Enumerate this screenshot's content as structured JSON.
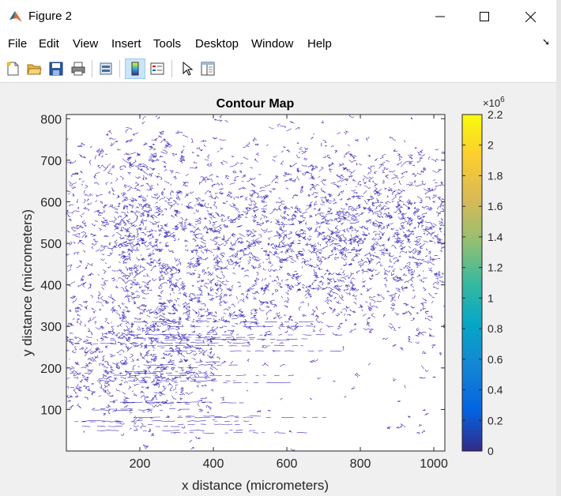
{
  "window": {
    "title": "Figure 2"
  },
  "menu": [
    "File",
    "Edit",
    "View",
    "Insert",
    "Tools",
    "Desktop",
    "Window",
    "Help"
  ],
  "toolbar_icons": [
    "new-figure-icon",
    "open-file-icon",
    "save-icon",
    "print-icon",
    "link-plot-icon",
    "insert-colorbar-icon",
    "insert-legend-icon",
    "edit-plot-pointer-icon",
    "property-inspector-icon"
  ],
  "colors": {
    "contour": "#3d2fb8",
    "parula_low": "#3e26a8",
    "parula_high": "#f9fb15"
  },
  "chart_data": {
    "type": "contour",
    "title": "Contour Map",
    "xlabel": "x distance (micrometers)",
    "ylabel": "y distance (micrometers)",
    "xlim": [
      0,
      1030
    ],
    "ylim": [
      0,
      810
    ],
    "x_ticks": [
      "200",
      "400",
      "600",
      "800",
      "1000"
    ],
    "y_ticks": [
      "100",
      "200",
      "300",
      "400",
      "500",
      "600",
      "700",
      "800"
    ],
    "colorbar": {
      "multiplier": "×10",
      "exponent": "6",
      "range": [
        0,
        2.2
      ],
      "ticks": [
        "0",
        "0.2",
        "0.4",
        "0.6",
        "0.8",
        "1",
        "1.2",
        "1.4",
        "1.6",
        "1.8",
        "2",
        "2.2"
      ]
    }
  }
}
